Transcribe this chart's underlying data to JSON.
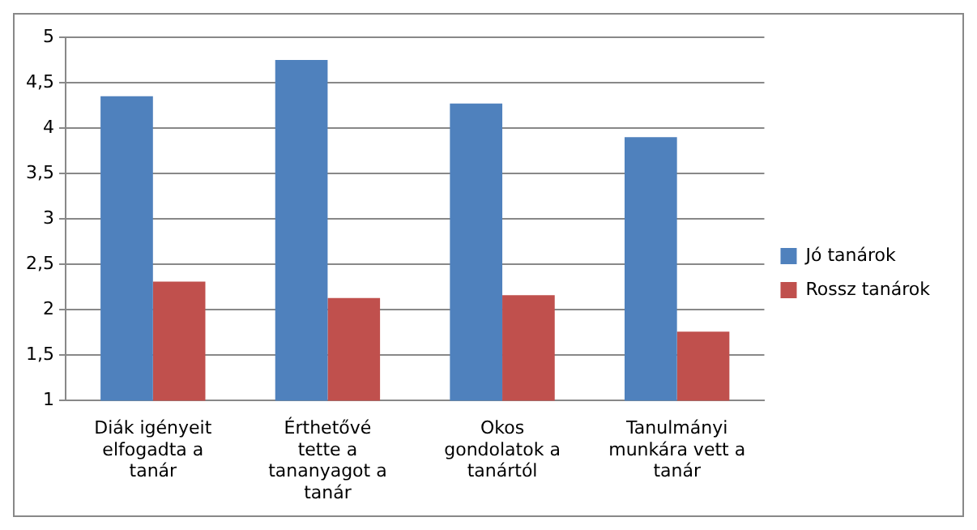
{
  "chart_data": {
    "type": "bar",
    "categories": [
      "Diák igényeit elfogadta a tanár",
      "Érthetővé tette a tananyagot a tanár",
      "Okos gondolatok a tanártól",
      "Tanulmányi munkára vett a tanár"
    ],
    "series": [
      {
        "name": "Jó tanárok",
        "color": "#4f81bd",
        "values": [
          4.35,
          4.75,
          4.27,
          3.9
        ]
      },
      {
        "name": "Rossz tanárok",
        "color": "#c0504d",
        "values": [
          2.31,
          2.13,
          2.16,
          1.76
        ]
      }
    ],
    "ylim": [
      1,
      5
    ],
    "yticks": [
      1,
      {
        "value": 1.5,
        "label": "1,5"
      },
      2,
      {
        "value": 2.5,
        "label": "2,5"
      },
      3,
      {
        "value": 3.5,
        "label": "3,5"
      },
      4,
      {
        "value": 4.5,
        "label": "4,5"
      },
      5
    ],
    "grid": "y",
    "legend": "right"
  }
}
